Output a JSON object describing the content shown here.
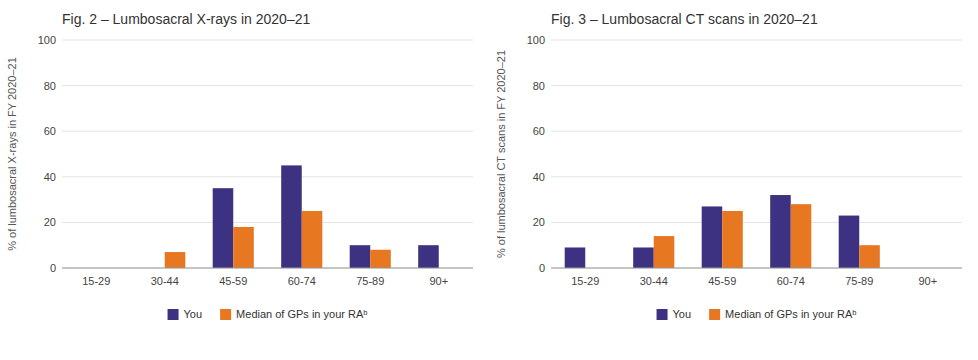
{
  "chart_data": [
    {
      "type": "bar",
      "title": "Fig. 2 – Lumbosacral X-rays in 2020–21",
      "ylabel": "% of lumbosacral X-rays in FY 2020–21",
      "categories": [
        "15-29",
        "30-44",
        "45-59",
        "60-74",
        "75-89",
        "90+"
      ],
      "series": [
        {
          "name": "You",
          "color": "#3d3181",
          "values": [
            0,
            0,
            35,
            45,
            10,
            10
          ]
        },
        {
          "name": "Median of GPs in your RAᵇ",
          "color": "#e87722",
          "values": [
            0,
            7,
            18,
            25,
            8,
            0
          ]
        }
      ],
      "ylim": [
        0,
        100
      ],
      "yticks": [
        0,
        20,
        40,
        60,
        80,
        100
      ],
      "grid": true,
      "legend": "bottom"
    },
    {
      "type": "bar",
      "title": "Fig. 3 – Lumbosacral CT scans in 2020–21",
      "ylabel": "% of lumbosacral CT scans in FY 2020–21",
      "categories": [
        "15-29",
        "30-44",
        "45-59",
        "60-74",
        "75-89",
        "90+"
      ],
      "series": [
        {
          "name": "You",
          "color": "#3d3181",
          "values": [
            9,
            9,
            27,
            32,
            23,
            0
          ]
        },
        {
          "name": "Median of GPs in your RAᵇ",
          "color": "#e87722",
          "values": [
            0,
            14,
            25,
            28,
            10,
            0
          ]
        }
      ],
      "ylim": [
        0,
        100
      ],
      "yticks": [
        0,
        20,
        40,
        60,
        80,
        100
      ],
      "grid": true,
      "legend": "bottom"
    }
  ]
}
